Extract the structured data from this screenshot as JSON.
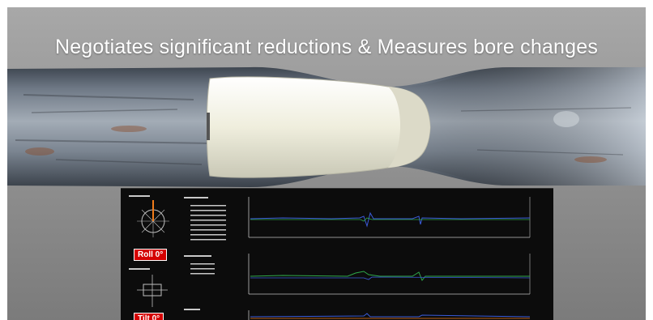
{
  "headline": "Negotiates significant reductions & Measures bore changes",
  "panel": {
    "roll_badge": "Roll  0°",
    "tilt_badge": "Tilt  0°",
    "colors": {
      "background": "#0c0c0c",
      "trace_blue": "#3a5bd9",
      "trace_green": "#2fa84a",
      "axis": "#bfbfbf",
      "badge": "#d40000"
    }
  },
  "colors": {
    "backdrop": "#8c8c8c",
    "tool_body": "#efeedd",
    "pipe_wall": "#8d96a0"
  }
}
